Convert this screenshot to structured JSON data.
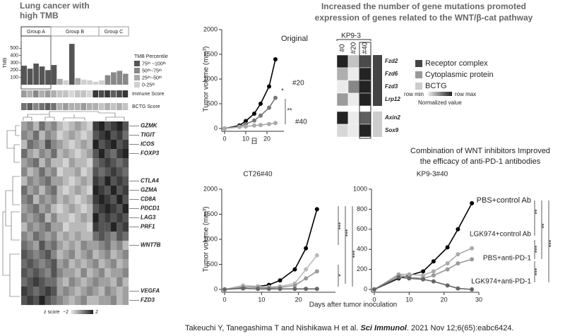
{
  "chart_data": [
    {
      "type": "bar",
      "ylabel": "TMB",
      "values": [
        260,
        220,
        290,
        250,
        200,
        270,
        80,
        60,
        560,
        90,
        70,
        60,
        40,
        60,
        130,
        170,
        190,
        150
      ],
      "colors": [
        "#555",
        "#555",
        "#555",
        "#555",
        "#555",
        "#555",
        "#aaa",
        "#d0d0d0",
        "#555",
        "#aaa",
        "#d0d0d0",
        "#d0d0d0",
        "#d0d0d0",
        "#d0d0d0",
        "#888",
        "#888",
        "#888",
        "#888"
      ],
      "ylim": [
        0,
        600
      ],
      "yticks": [
        100,
        200,
        300,
        400,
        500
      ]
    },
    {
      "type": "line",
      "xlabel": "日",
      "ylabel": "Tumor volume (mm³)",
      "x": [
        0,
        7,
        10,
        14,
        17,
        21,
        24
      ],
      "series": [
        {
          "name": "Original",
          "color": "#000",
          "values": [
            0,
            60,
            150,
            300,
            500,
            850,
            1400
          ]
        },
        {
          "name": "#20",
          "color": "#777",
          "values": [
            0,
            40,
            90,
            160,
            260,
            420,
            620
          ]
        },
        {
          "name": "#40",
          "color": "#aaa",
          "values": [
            0,
            30,
            40,
            60,
            70,
            90,
            110
          ]
        }
      ],
      "annotations": [
        "*",
        "**"
      ],
      "xlim": [
        0,
        28
      ],
      "xticks": [
        0,
        10,
        20
      ],
      "ylim": [
        0,
        2000
      ],
      "yticks": [
        0,
        500,
        1000,
        1500,
        2000
      ]
    },
    {
      "type": "line",
      "title": "CT26#40",
      "ylabel": "Tumor volume (mm³)",
      "x": [
        0,
        5,
        9,
        12,
        15,
        19,
        22,
        25
      ],
      "series": [
        {
          "color": "#000",
          "values": [
            0,
            40,
            60,
            90,
            180,
            400,
            820,
            1600
          ]
        },
        {
          "color": "#bbb",
          "values": [
            0,
            80,
            60,
            50,
            60,
            120,
            400,
            680
          ]
        },
        {
          "color": "#999",
          "values": [
            0,
            50,
            40,
            30,
            40,
            80,
            220,
            360
          ]
        },
        {
          "color": "#666",
          "values": [
            0,
            20,
            10,
            10,
            10,
            10,
            10,
            10
          ]
        }
      ],
      "annotations": [
        "***",
        "***",
        "***",
        "*"
      ],
      "xlim": [
        0,
        30
      ],
      "xticks": [
        0,
        10,
        20
      ],
      "ylim": [
        0,
        2000
      ],
      "yticks": [
        0,
        500,
        1000,
        1500,
        2000
      ]
    },
    {
      "type": "line",
      "title": "KP9-3#40",
      "xlabel": "Days after tumor inoculation",
      "x": [
        0,
        7,
        10,
        14,
        17,
        21,
        24,
        28
      ],
      "series": [
        {
          "name": "PBS+control Ab",
          "color": "#000",
          "values": [
            0,
            110,
            140,
            180,
            280,
            420,
            600,
            860
          ]
        },
        {
          "name": "LGK974+control Ab",
          "color": "#aaa",
          "values": [
            0,
            150,
            150,
            140,
            180,
            260,
            350,
            410
          ]
        },
        {
          "name": "PBS+anti-PD-1",
          "color": "#999",
          "values": [
            0,
            140,
            120,
            110,
            140,
            200,
            260,
            300
          ]
        },
        {
          "name": "LGK974+anti-PD-1",
          "color": "#666",
          "values": [
            0,
            120,
            110,
            100,
            80,
            40,
            10,
            0
          ]
        }
      ],
      "annotations": [
        "**",
        "**",
        "***",
        "***",
        "***"
      ],
      "xlim": [
        0,
        30
      ],
      "xticks": [
        0,
        10,
        20,
        30
      ],
      "ylim": [
        0,
        1000
      ],
      "yticks": [
        0,
        200,
        400,
        600,
        800,
        1000
      ]
    }
  ],
  "left_panel": {
    "title_lines": [
      "Lung cancer with",
      "high TMB"
    ],
    "groups": [
      "Group A",
      "Group B",
      "Group C"
    ],
    "legend_title": "TMB Percentile",
    "legend": [
      {
        "label": "75ᵗʰ ~100ᵗʰ",
        "color": "#555"
      },
      {
        "label": "50ᵗʰ~75ᵗʰ",
        "color": "#888"
      },
      {
        "label": "25ᵗʰ~50ᵗʰ",
        "color": "#aaa"
      },
      {
        "label": "0-25ᵗʰ",
        "color": "#d0d0d0"
      }
    ],
    "immune_label": "Immune Score",
    "immune_values": [
      0.4,
      0.3,
      0.5,
      0.3,
      0.4,
      0.3,
      0.2,
      0.2,
      0.1,
      0.2,
      0.2,
      0.1,
      0.9,
      0.8,
      0.9,
      0.7,
      0.8,
      0.9
    ],
    "bctg_label": "BCTG Score",
    "bctg_values": [
      0.6,
      0.7,
      0.5,
      0.6,
      0.7,
      0.6,
      0.3,
      0.4,
      0.3,
      0.3,
      0.4,
      0.3,
      0.3,
      0.2,
      0.3,
      0.2,
      0.3,
      0.2
    ],
    "heatmap": [
      [
        -0.5,
        0,
        -1,
        0.5,
        -0.5,
        0,
        -1,
        -1.5,
        -1,
        -0.5,
        -1,
        -1.5,
        1.5,
        2,
        1,
        1.5,
        2,
        1
      ],
      [
        0,
        -0.5,
        0.5,
        -1,
        0,
        -0.5,
        -1.5,
        -1,
        -0.5,
        -1,
        -1.5,
        -1,
        1,
        1.5,
        2,
        1,
        1.5,
        0.5
      ],
      [
        -1,
        0.5,
        0,
        -0.5,
        1,
        0,
        -0.5,
        -1,
        -1.5,
        -1,
        -0.5,
        -1,
        2,
        1,
        1.5,
        2,
        1,
        1.5
      ],
      [
        0.5,
        -0.5,
        -1,
        0,
        -0.5,
        0.5,
        -1,
        -0.5,
        -1,
        -1.5,
        -1,
        -0.5,
        1,
        2,
        1,
        0.5,
        1.5,
        2
      ],
      [
        -0.5,
        0,
        0.5,
        -1,
        0,
        -1,
        -1,
        -1.5,
        -0.5,
        -1,
        -1,
        -1.5,
        0.5,
        1,
        1.5,
        1,
        0.5,
        1
      ],
      [
        0,
        -1,
        -0.5,
        0.5,
        -0.5,
        0,
        -1.5,
        -1,
        -1,
        -0.5,
        -1.5,
        -1,
        1,
        0.5,
        1,
        1.5,
        1,
        0.5
      ],
      [
        -1,
        0,
        -0.5,
        0,
        0.5,
        -0.5,
        -0.5,
        -1,
        -1.5,
        -1,
        -0.5,
        -1,
        1.5,
        1,
        2,
        1,
        1.5,
        1
      ],
      [
        0.5,
        -0.5,
        0,
        -1,
        0,
        0.5,
        -1,
        -1.5,
        -1,
        -0.5,
        -1,
        -1.5,
        2,
        1.5,
        1,
        2,
        1,
        1.5
      ],
      [
        0,
        0.5,
        -1,
        0,
        -0.5,
        0,
        -1,
        -0.5,
        -1,
        -1.5,
        -1,
        -0.5,
        1.5,
        2,
        1.5,
        1,
        2,
        1
      ],
      [
        -0.5,
        0,
        0.5,
        -0.5,
        0,
        -1,
        -1.5,
        -1,
        -0.5,
        -1,
        -1.5,
        -1,
        1,
        1.5,
        2,
        1.5,
        1,
        2
      ],
      [
        0,
        -0.5,
        0,
        0.5,
        -1,
        0,
        -1,
        -1,
        -1.5,
        -1,
        -0.5,
        -1,
        2,
        1,
        1.5,
        1,
        1.5,
        1
      ],
      [
        -1,
        0,
        -0.5,
        0,
        0.5,
        -0.5,
        -0.5,
        -1.5,
        -1,
        -1,
        -1,
        -1.5,
        1.5,
        1,
        1,
        2,
        1,
        1.5
      ],
      [
        0,
        -0.5,
        0.5,
        0,
        -0.5,
        0,
        -1,
        -0.5,
        -1,
        -0.5,
        -1,
        -1,
        0.5,
        1,
        0.5,
        0,
        1,
        0.5
      ],
      [
        0.5,
        0,
        -0.5,
        1,
        0,
        0.5,
        -0.5,
        -1,
        -0.5,
        -1,
        0,
        -0.5,
        -0.5,
        0,
        0.5,
        -0.5,
        0,
        -1
      ],
      [
        1,
        0.5,
        0,
        0.5,
        1,
        0,
        -1,
        -0.5,
        0,
        -1,
        -0.5,
        0,
        -1,
        -0.5,
        0,
        -1,
        -0.5,
        0
      ],
      [
        0.5,
        1,
        0.5,
        0,
        0.5,
        1,
        -0.5,
        0,
        -1,
        -0.5,
        -1,
        -0.5,
        0,
        -1,
        -0.5,
        0,
        -1,
        -0.5
      ],
      [
        1,
        0.5,
        1,
        0.5,
        0,
        1,
        0,
        -0.5,
        -0.5,
        -1,
        0,
        -1,
        -0.5,
        0,
        -1,
        -0.5,
        -0.5,
        0
      ],
      [
        0.5,
        1,
        1.5,
        1,
        0.5,
        0.5,
        -0.5,
        -1,
        0,
        -0.5,
        -1,
        -0.5,
        0,
        -0.5,
        -0.5,
        -1,
        0,
        -1
      ],
      [
        1.5,
        1,
        0.5,
        1,
        1.5,
        1,
        -0.5,
        0,
        -0.5,
        -1,
        -0.5,
        0,
        -0.5,
        -1,
        0,
        -0.5,
        -1,
        -0.5
      ],
      [
        1,
        1.5,
        1,
        2,
        1,
        0.5,
        0,
        -0.5,
        -1,
        -0.5,
        0,
        -1,
        -1,
        -0.5,
        -0.5,
        0,
        -1,
        -0.5
      ]
    ],
    "row_labels": [
      "GZMK",
      "TIGIT",
      "ICOS",
      "FOXP3",
      null,
      null,
      "CTLA4",
      "GZMA",
      "CD8A",
      "PDCD1",
      "LAG3",
      "PRF1",
      null,
      "WNT7B",
      null,
      null,
      null,
      null,
      "VEGFA",
      "FZD3"
    ],
    "zscale_title": "z score",
    "zscale": [
      {
        "value": -2,
        "label": "−2"
      },
      2
    ]
  },
  "right_panel": {
    "title_lines": [
      "Increased the number of gene mutations promoted",
      "expression of genes related to the WNT/β-cat pathway"
    ],
    "heatmap_title": "KP9-3",
    "columns": [
      "#0",
      "#20",
      "#40"
    ],
    "rows": [
      "Fzd2",
      "Fzd6",
      "Fzd3",
      "Lrp12",
      "Axin2",
      "Sox9"
    ],
    "row_groups": [
      0,
      0,
      0,
      0,
      2,
      2
    ],
    "values": [
      [
        1,
        0.2,
        0.8
      ],
      [
        0.3,
        0,
        1
      ],
      [
        0,
        0.5,
        1
      ],
      [
        0.4,
        0,
        1
      ],
      [
        1,
        0,
        0.7
      ],
      [
        0.1,
        0,
        1
      ]
    ],
    "legend": [
      {
        "label": "Receptor complex",
        "color": "#444"
      },
      {
        "label": "Cytoplasmic protein",
        "color": "#999"
      },
      {
        "label": "BCTG",
        "color": "#ccc"
      }
    ],
    "scale_min": "row min",
    "scale_max": "row max",
    "scale_title": "Normalized value"
  },
  "subtitle_lines": [
    "Combination of WNT inhibitors Improved",
    "the efficacy of anti-PD-1 antibodies"
  ],
  "citation": [
    "Takeuchi Y, Tanegashima T and Nishikawa H et al. ",
    "Sci Immunol",
    ". 2021 Nov 12;6(65):eabc6424."
  ]
}
